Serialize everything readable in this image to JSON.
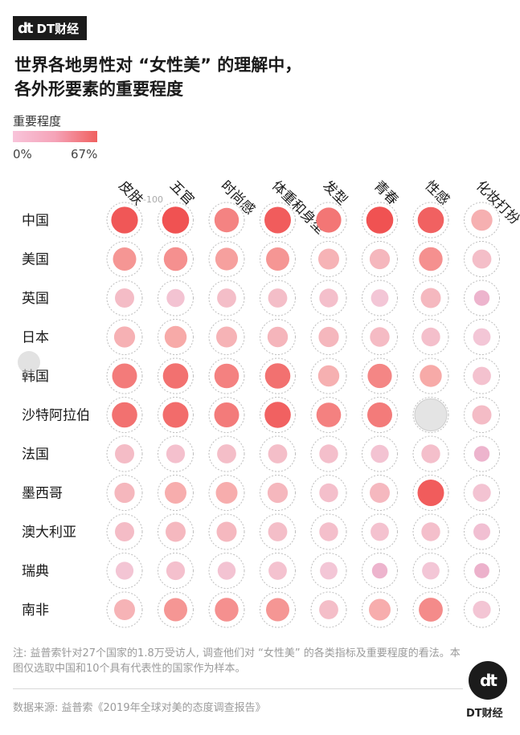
{
  "brand": {
    "logo": "dt",
    "name": "DT财经"
  },
  "title": {
    "line1": "世界各地男性对 “女性美” 的理解中，",
    "line2": "各外形要素的重要程度"
  },
  "legend": {
    "title": "重要程度",
    "min_label": "0%",
    "max_label": "67%",
    "colors": [
      "#f8c4da",
      "#f5a3b8",
      "#f0605f"
    ]
  },
  "chart_data": {
    "type": "heatmap",
    "title": "世界各地男性对 “女性美” 的理解中，各外形要素的重要程度",
    "value_range": [
      0,
      67
    ],
    "unit": "%",
    "columns": [
      "皮肤",
      "五官",
      "时尚感",
      "体重和身型",
      "发型",
      "青春",
      "性感",
      "化妆打扮"
    ],
    "rows": [
      "中国",
      "美国",
      "英国",
      "日本",
      "韩国",
      "沙特阿拉伯",
      "法国",
      "墨西哥",
      "澳大利亚",
      "瑞典",
      "南非"
    ],
    "values": [
      [
        62,
        64,
        45,
        60,
        50,
        64,
        58,
        26
      ],
      [
        38,
        40,
        34,
        38,
        24,
        21,
        40,
        16
      ],
      [
        17,
        12,
        16,
        16,
        15,
        10,
        20,
        5
      ],
      [
        25,
        30,
        24,
        22,
        21,
        18,
        15,
        10
      ],
      [
        48,
        52,
        46,
        52,
        26,
        44,
        30,
        13
      ],
      [
        52,
        54,
        48,
        58,
        46,
        48,
        null,
        17
      ],
      [
        17,
        14,
        16,
        16,
        15,
        12,
        15,
        5
      ],
      [
        21,
        28,
        28,
        21,
        15,
        20,
        60,
        12
      ],
      [
        17,
        20,
        20,
        16,
        15,
        13,
        15,
        8
      ],
      [
        11,
        14,
        12,
        13,
        10,
        5,
        10,
        4
      ],
      [
        24,
        38,
        40,
        38,
        16,
        28,
        42,
        11
      ]
    ],
    "scale_label": "100",
    "na_color": "#e4e4e4"
  },
  "note": "注: 益普索针对27个国家的1.8万受访人, 调查他们对 “女性美” 的各类指标及重要程度的看法。本图仅选取中国和10个具有代表性的国家作为样本。",
  "source": "数据来源: 益普索《2019年全球对美的态度调查报告》",
  "footer_badge": {
    "logo": "dt",
    "name": "DT财经"
  }
}
